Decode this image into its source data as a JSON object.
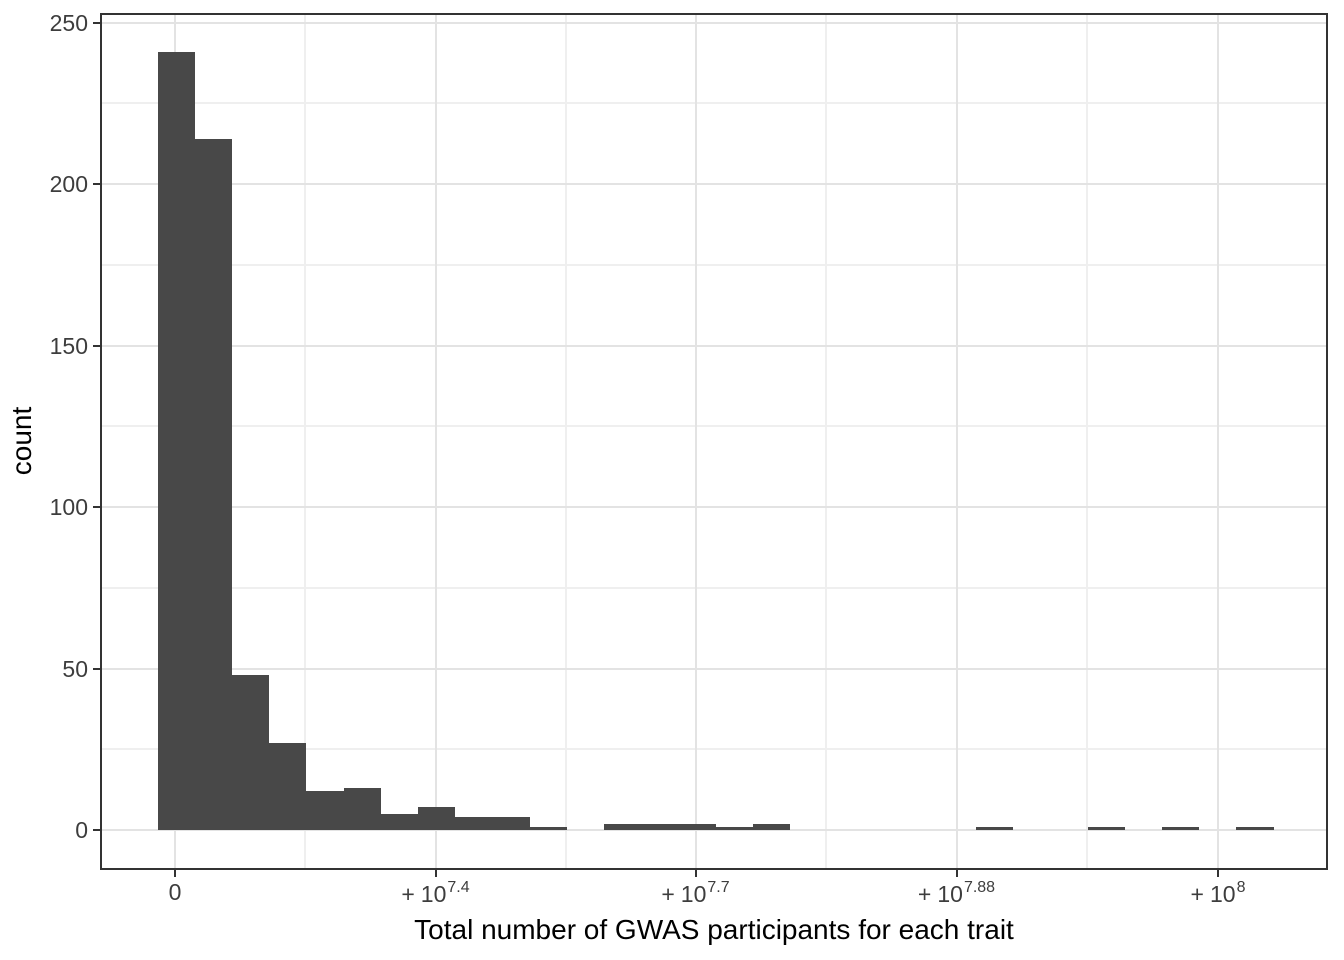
{
  "figure": {
    "kind": "ggplot-style histogram screenshot",
    "background": "#ffffff"
  },
  "chart_data": {
    "type": "bar",
    "subtype": "histogram",
    "title": "",
    "xlabel": "Total number of GWAS participants for each trait",
    "ylabel": "count",
    "bar_color": "#484848",
    "background": "#ffffff",
    "panel_border_color": "#333333",
    "grid_major_color": "#e3e3e3",
    "grid_minor_color": "#efefef",
    "axis_text_color": "#3d3d3d",
    "axis_title_color": "#000000",
    "tick_mark_color": "#333333",
    "grid": true,
    "legend": "none",
    "n_bins": 30,
    "counts": [
      241,
      214,
      48,
      27,
      12,
      13,
      5,
      7,
      4,
      4,
      1,
      0,
      2,
      2,
      2,
      1,
      2,
      0,
      0,
      0,
      0,
      0,
      1,
      0,
      0,
      1,
      0,
      1,
      0,
      1
    ],
    "y_axis": {
      "ticks": [
        0,
        50,
        100,
        150,
        200,
        250
      ],
      "minor": [
        25,
        75,
        125,
        175,
        225
      ],
      "range": [
        -12,
        252
      ]
    },
    "x_axis": {
      "note": "transformed (pseudo-log) scale; ticks evenly spaced in pixels",
      "ticks": [
        {
          "plus": "",
          "base": "0",
          "sup": ""
        },
        {
          "plus": "+",
          "base": "10",
          "sup": "7.4"
        },
        {
          "plus": "+",
          "base": "10",
          "sup": "7.7"
        },
        {
          "plus": "+",
          "base": "10",
          "sup": "7.88"
        },
        {
          "plus": "+",
          "base": "10",
          "sup": "8"
        }
      ]
    }
  }
}
